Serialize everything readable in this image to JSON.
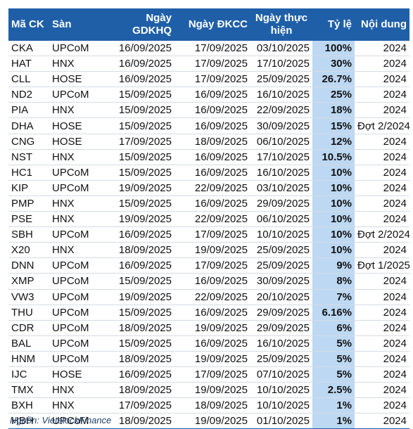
{
  "headers": {
    "code": "Mã CK",
    "exchange": "Sàn",
    "ex_date": "Ngày GDKHQ",
    "record_date": "Ngày ĐKCC",
    "payment_date": "Ngày thực hiện",
    "ratio": "Tỷ lệ",
    "content": "Nội dung"
  },
  "rows": [
    {
      "code": "CKA",
      "exchange": "UPCoM",
      "ex_date": "16/09/2025",
      "record_date": "17/09/2025",
      "payment_date": "03/10/2025",
      "ratio": "100%",
      "content": "2024"
    },
    {
      "code": "HAT",
      "exchange": "HNX",
      "ex_date": "16/09/2025",
      "record_date": "17/09/2025",
      "payment_date": "17/10/2025",
      "ratio": "30%",
      "content": "2024"
    },
    {
      "code": "CLL",
      "exchange": "HOSE",
      "ex_date": "16/09/2025",
      "record_date": "17/09/2025",
      "payment_date": "25/09/2025",
      "ratio": "26.7%",
      "content": "2024"
    },
    {
      "code": "ND2",
      "exchange": "UPCoM",
      "ex_date": "15/09/2025",
      "record_date": "16/09/2025",
      "payment_date": "16/10/2025",
      "ratio": "25%",
      "content": "2024"
    },
    {
      "code": "PIA",
      "exchange": "HNX",
      "ex_date": "15/09/2025",
      "record_date": "16/09/2025",
      "payment_date": "22/09/2025",
      "ratio": "18%",
      "content": "2024"
    },
    {
      "code": "DHA",
      "exchange": "HOSE",
      "ex_date": "15/09/2025",
      "record_date": "16/09/2025",
      "payment_date": "30/09/2025",
      "ratio": "15%",
      "content": "Đợt 2/2024"
    },
    {
      "code": "CNG",
      "exchange": "HOSE",
      "ex_date": "17/09/2025",
      "record_date": "18/09/2025",
      "payment_date": "06/10/2025",
      "ratio": "12%",
      "content": "2024"
    },
    {
      "code": "NST",
      "exchange": "HNX",
      "ex_date": "15/09/2025",
      "record_date": "16/09/2025",
      "payment_date": "17/10/2025",
      "ratio": "10.5%",
      "content": "2024"
    },
    {
      "code": "HC1",
      "exchange": "UPCoM",
      "ex_date": "15/09/2025",
      "record_date": "16/09/2025",
      "payment_date": "16/10/2025",
      "ratio": "10%",
      "content": "2024"
    },
    {
      "code": "KIP",
      "exchange": "UPCoM",
      "ex_date": "19/09/2025",
      "record_date": "22/09/2025",
      "payment_date": "03/10/2025",
      "ratio": "10%",
      "content": "2024"
    },
    {
      "code": "PMP",
      "exchange": "HNX",
      "ex_date": "15/09/2025",
      "record_date": "16/09/2025",
      "payment_date": "29/09/2025",
      "ratio": "10%",
      "content": "2024"
    },
    {
      "code": "PSE",
      "exchange": "HNX",
      "ex_date": "19/09/2025",
      "record_date": "22/09/2025",
      "payment_date": "06/10/2025",
      "ratio": "10%",
      "content": "2024"
    },
    {
      "code": "SBH",
      "exchange": "UPCoM",
      "ex_date": "16/09/2025",
      "record_date": "17/09/2025",
      "payment_date": "10/10/2025",
      "ratio": "10%",
      "content": "Đợt 2/2024"
    },
    {
      "code": "X20",
      "exchange": "HNX",
      "ex_date": "18/09/2025",
      "record_date": "19/09/2025",
      "payment_date": "25/09/2025",
      "ratio": "10%",
      "content": "2024"
    },
    {
      "code": "DNN",
      "exchange": "UPCoM",
      "ex_date": "16/09/2025",
      "record_date": "17/09/2025",
      "payment_date": "25/09/2025",
      "ratio": "9%",
      "content": "Đợt 1/2025"
    },
    {
      "code": "XMP",
      "exchange": "UPCoM",
      "ex_date": "15/09/2025",
      "record_date": "16/09/2025",
      "payment_date": "30/09/2025",
      "ratio": "8%",
      "content": "2024"
    },
    {
      "code": "VW3",
      "exchange": "UPCoM",
      "ex_date": "19/09/2025",
      "record_date": "22/09/2025",
      "payment_date": "20/10/2025",
      "ratio": "7%",
      "content": "2024"
    },
    {
      "code": "THU",
      "exchange": "UPCoM",
      "ex_date": "15/09/2025",
      "record_date": "16/09/2025",
      "payment_date": "29/09/2025",
      "ratio": "6.16%",
      "content": "2024"
    },
    {
      "code": "CDR",
      "exchange": "UPCoM",
      "ex_date": "18/09/2025",
      "record_date": "19/09/2025",
      "payment_date": "29/09/2025",
      "ratio": "6%",
      "content": "2024"
    },
    {
      "code": "BAL",
      "exchange": "UPCoM",
      "ex_date": "15/09/2025",
      "record_date": "16/09/2025",
      "payment_date": "16/10/2025",
      "ratio": "5%",
      "content": "2024"
    },
    {
      "code": "HNM",
      "exchange": "UPCoM",
      "ex_date": "18/09/2025",
      "record_date": "19/09/2025",
      "payment_date": "25/09/2025",
      "ratio": "5%",
      "content": "2024"
    },
    {
      "code": "IJC",
      "exchange": "HOSE",
      "ex_date": "16/09/2025",
      "record_date": "17/09/2025",
      "payment_date": "07/10/2025",
      "ratio": "5%",
      "content": "2024"
    },
    {
      "code": "TMX",
      "exchange": "HNX",
      "ex_date": "18/09/2025",
      "record_date": "19/09/2025",
      "payment_date": "10/10/2025",
      "ratio": "2.5%",
      "content": "2024"
    },
    {
      "code": "BXH",
      "exchange": "HNX",
      "ex_date": "17/09/2025",
      "record_date": "18/09/2025",
      "payment_date": "10/10/2025",
      "ratio": "1%",
      "content": "2024"
    },
    {
      "code": "HBH",
      "exchange": "UPCoM",
      "ex_date": "18/09/2025",
      "record_date": "19/09/2025",
      "payment_date": "01/10/2025",
      "ratio": "1%",
      "content": "2024"
    }
  ],
  "source": "Nguồn: VietstockFinance",
  "colors": {
    "header_bg": "#1f5fa8",
    "ratio_bg": "#bdd8f2"
  }
}
